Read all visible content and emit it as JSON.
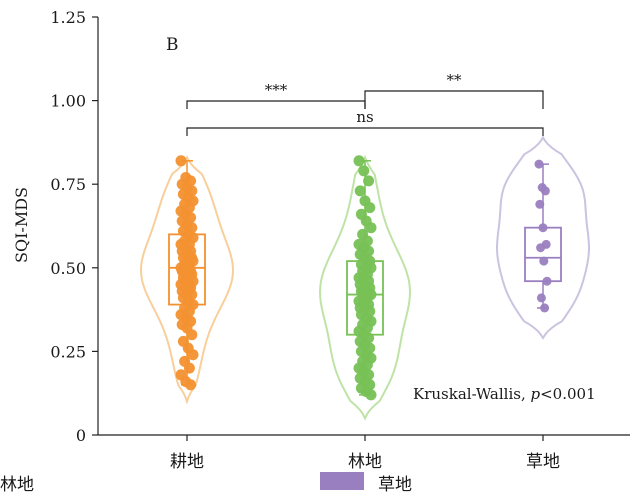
{
  "chart_data": {
    "type": "violin",
    "panel_label": "B",
    "ylabel": "SQI-MDS",
    "ylim": [
      0,
      1.25
    ],
    "yticks": [
      "0",
      "0.25",
      "0.50",
      "0.75",
      "1.00",
      "1.25"
    ],
    "categories": [
      "耕地",
      "林地",
      "草地"
    ],
    "colors": [
      "#f39130",
      "#77c155",
      "#9a7fc0"
    ],
    "violin_colors": [
      "#f8cf9b",
      "#bfe3a6",
      "#cbc3df"
    ],
    "series": [
      {
        "name": "耕地",
        "min": 0.15,
        "q1": 0.39,
        "median": 0.5,
        "q3": 0.6,
        "max": 0.82,
        "violin_range": [
          0.1,
          0.83
        ],
        "points": [
          0.82,
          0.77,
          0.76,
          0.75,
          0.74,
          0.73,
          0.72,
          0.71,
          0.7,
          0.69,
          0.68,
          0.67,
          0.66,
          0.65,
          0.64,
          0.63,
          0.62,
          0.61,
          0.6,
          0.59,
          0.58,
          0.57,
          0.57,
          0.56,
          0.55,
          0.55,
          0.54,
          0.53,
          0.53,
          0.52,
          0.52,
          0.51,
          0.51,
          0.5,
          0.5,
          0.49,
          0.49,
          0.48,
          0.48,
          0.47,
          0.47,
          0.46,
          0.46,
          0.45,
          0.45,
          0.44,
          0.44,
          0.43,
          0.42,
          0.42,
          0.41,
          0.4,
          0.39,
          0.38,
          0.37,
          0.36,
          0.35,
          0.34,
          0.33,
          0.32,
          0.3,
          0.28,
          0.26,
          0.24,
          0.22,
          0.2,
          0.18,
          0.16,
          0.15
        ]
      },
      {
        "name": "林地",
        "min": 0.12,
        "q1": 0.3,
        "median": 0.42,
        "q3": 0.52,
        "max": 0.82,
        "violin_range": [
          0.05,
          0.83
        ],
        "points": [
          0.82,
          0.79,
          0.76,
          0.73,
          0.7,
          0.68,
          0.66,
          0.64,
          0.62,
          0.6,
          0.58,
          0.57,
          0.56,
          0.55,
          0.54,
          0.53,
          0.52,
          0.51,
          0.5,
          0.5,
          0.49,
          0.48,
          0.47,
          0.47,
          0.46,
          0.45,
          0.45,
          0.44,
          0.43,
          0.43,
          0.42,
          0.42,
          0.41,
          0.4,
          0.4,
          0.39,
          0.38,
          0.38,
          0.37,
          0.36,
          0.35,
          0.34,
          0.33,
          0.32,
          0.31,
          0.3,
          0.29,
          0.28,
          0.27,
          0.26,
          0.25,
          0.24,
          0.23,
          0.22,
          0.21,
          0.2,
          0.19,
          0.18,
          0.17,
          0.16,
          0.15,
          0.14,
          0.13,
          0.12
        ]
      },
      {
        "name": "草地",
        "min": 0.38,
        "q1": 0.46,
        "median": 0.53,
        "q3": 0.62,
        "max": 0.81,
        "violin_range": [
          0.29,
          0.89
        ],
        "points": [
          0.81,
          0.74,
          0.73,
          0.69,
          0.62,
          0.57,
          0.56,
          0.52,
          0.46,
          0.41,
          0.38
        ]
      }
    ],
    "significance": [
      {
        "from": 0,
        "to": 1,
        "label": "***",
        "y": 1.0
      },
      {
        "from": 1,
        "to": 2,
        "label": "**",
        "y": 1.03
      },
      {
        "from": 0,
        "to": 2,
        "label": "ns",
        "y": 0.92
      }
    ],
    "annotation": "Kruskal-Wallis, ",
    "annotation_p": "p",
    "annotation_tail": "<0.001",
    "legend": [
      {
        "label": "林地",
        "color": "#77c155"
      },
      {
        "label": "草地",
        "color": "#9a7fc0"
      }
    ]
  }
}
